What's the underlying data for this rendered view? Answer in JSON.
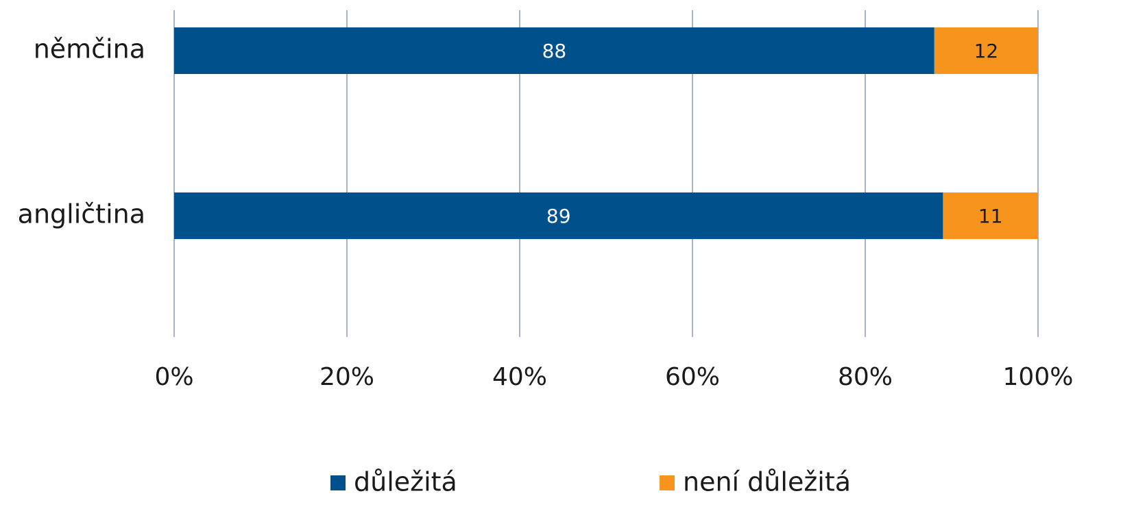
{
  "chart_data": {
    "type": "stacked_barh",
    "categories": [
      "němčina",
      "angličtina"
    ],
    "series": [
      {
        "name": "důležitá",
        "color": "#00508c",
        "values": [
          88,
          89
        ]
      },
      {
        "name": "není důležitá",
        "color": "#f7941d",
        "values": [
          12,
          11
        ]
      }
    ],
    "xlim": [
      0,
      100
    ],
    "xticks": [
      {
        "value": 0,
        "label": "0%"
      },
      {
        "value": 20,
        "label": "20%"
      },
      {
        "value": 40,
        "label": "40%"
      },
      {
        "value": 60,
        "label": "60%"
      },
      {
        "value": 80,
        "label": "80%"
      },
      {
        "value": 100,
        "label": "100%"
      }
    ],
    "grid": true,
    "legend": "bottom"
  }
}
